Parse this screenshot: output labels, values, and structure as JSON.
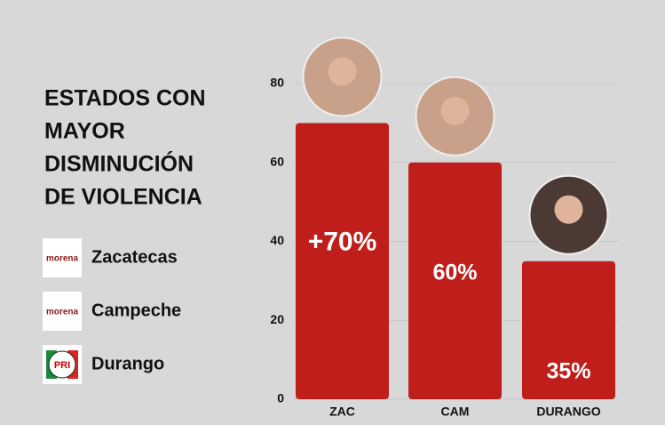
{
  "chart_data": {
    "type": "bar",
    "title": [
      "ESTADOS CON",
      "MAYOR",
      "DISMINUCIÓN",
      "DE VIOLENCIA"
    ],
    "legend": [
      {
        "logo": "morena",
        "name": "Zacatecas"
      },
      {
        "logo": "morena",
        "name": "Campeche"
      },
      {
        "logo": "PRI",
        "name": "Durango"
      }
    ],
    "categories": [
      "ZAC",
      "CAM",
      "DURANGO"
    ],
    "values": [
      70,
      60,
      35
    ],
    "value_labels": [
      "+70%",
      "60%",
      "35%"
    ],
    "color": "#bf1e1b",
    "ylim": [
      0,
      80
    ],
    "yticks": [
      0,
      20,
      40,
      60,
      80
    ],
    "grid": true
  }
}
